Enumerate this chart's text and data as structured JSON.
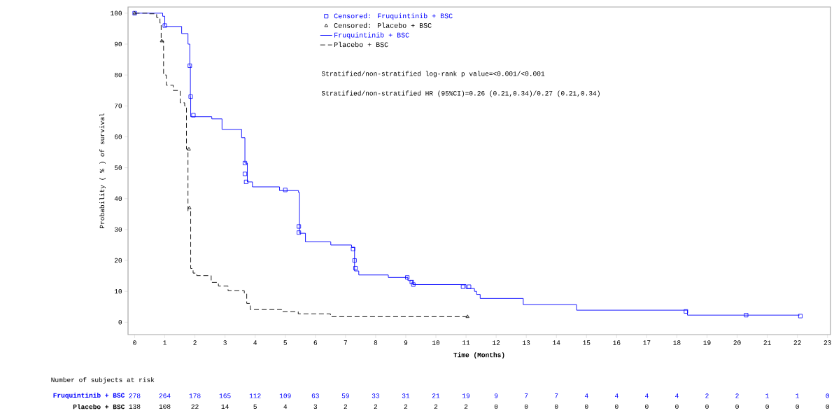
{
  "chart_data": {
    "type": "step",
    "xlabel": "Time (Months)",
    "ylabel": "Probability ( % ) of survival",
    "xlim": [
      -0.22,
      23.1
    ],
    "ylim": [
      -4,
      102
    ],
    "xticks": [
      0,
      1,
      2,
      3,
      4,
      5,
      6,
      7,
      8,
      9,
      10,
      11,
      12,
      13,
      14,
      15,
      16,
      17,
      18,
      19,
      20,
      21,
      22,
      23
    ],
    "yticks": [
      0,
      10,
      20,
      30,
      40,
      50,
      60,
      70,
      80,
      90,
      100
    ],
    "legend": "top",
    "series": [
      {
        "name": "Censored: Fruquintinib + BSC",
        "type": "scatter",
        "marker": "square",
        "color": "#0000ff",
        "x": [
          0,
          1.0,
          1.83,
          1.86,
          1.95,
          3.66,
          3.66,
          3.7,
          5.0,
          5.45,
          5.45,
          7.25,
          7.3,
          7.33,
          9.05,
          9.2,
          9.25,
          10.9,
          11.1,
          18.3,
          20.3,
          22.1
        ],
        "values": [
          100,
          96,
          83,
          73,
          67,
          51.5,
          48,
          45.4,
          42.8,
          31,
          29,
          23.7,
          20,
          17.5,
          14.5,
          13,
          12.2,
          11.5,
          11.5,
          3.5,
          2.3,
          2.0
        ]
      },
      {
        "name": "Censored: Placebo + BSC",
        "type": "scatter",
        "marker": "triangle",
        "color": "#000000",
        "x": [
          0,
          0.9,
          1.8,
          1.82,
          11.05
        ],
        "values": [
          100,
          91,
          56,
          37,
          1.8
        ]
      },
      {
        "name": "Fruquintinib + BSC",
        "line_style": "solid",
        "color": "#0000ff",
        "x": [
          0,
          0.93,
          1.0,
          1.56,
          1.77,
          1.83,
          1.85,
          1.86,
          2.56,
          2.9,
          3.55,
          3.66,
          3.74,
          3.91,
          4.81,
          5.44,
          5.47,
          5.67,
          6.51,
          7.2,
          7.3,
          7.44,
          8.42,
          9.07,
          9.23,
          11.0,
          11.28,
          11.35,
          11.47,
          12.9,
          14.67,
          18.35,
          22.07
        ],
        "values": [
          100,
          99,
          95.7,
          93.4,
          90,
          83,
          73,
          66.5,
          65.8,
          62.4,
          59.7,
          51.5,
          45.4,
          43.8,
          42.6,
          42,
          28.8,
          26,
          25,
          24.2,
          16.6,
          15.3,
          14.5,
          13.5,
          12.2,
          10.9,
          10,
          9,
          7.7,
          5.7,
          3.9,
          2.3,
          2.3
        ]
      },
      {
        "name": "Placebo + BSC",
        "line_style": "dashed",
        "color": "#000000",
        "x": [
          0,
          0.43,
          0.73,
          0.84,
          0.88,
          0.96,
          1.05,
          1.28,
          1.51,
          1.66,
          1.72,
          1.77,
          1.86,
          1.94,
          2.06,
          2.54,
          2.78,
          3.1,
          3.64,
          3.72,
          3.84,
          4.88,
          5.43,
          6.5,
          11.05
        ],
        "values": [
          100,
          99.8,
          98.6,
          96.8,
          91,
          80,
          76.7,
          75,
          71,
          70,
          56,
          36,
          17.4,
          15.9,
          15.1,
          12.9,
          11.7,
          10.2,
          9.4,
          6.1,
          4.1,
          3.4,
          2.7,
          1.8,
          1.8
        ]
      }
    ],
    "annotations": [
      "Stratified/non-stratified log-rank p value=<0.001/<0.001",
      "Stratified/non-stratified HR (95%CI)=0.26 (0.21,0.34)/0.27 (0.21,0.34)",
      "Number of subjects at risk",
      "**Fruquintinib + BSC**",
      "278",
      "264",
      "178",
      "165",
      "112",
      "109",
      "63",
      "59",
      "33",
      "31",
      "21",
      "19",
      "9",
      "7",
      "7",
      "4",
      "4",
      "4",
      "4",
      "2",
      "2",
      "1",
      "1",
      "0",
      "**Placebo + BSC**",
      "138",
      "108",
      "22",
      "14",
      "5",
      "4",
      "3",
      "2",
      "2",
      "2",
      "2",
      "2",
      "0",
      "0",
      "0",
      "0",
      "0",
      "0",
      "0",
      "0",
      "0",
      "0",
      "0",
      "0"
    ]
  }
}
